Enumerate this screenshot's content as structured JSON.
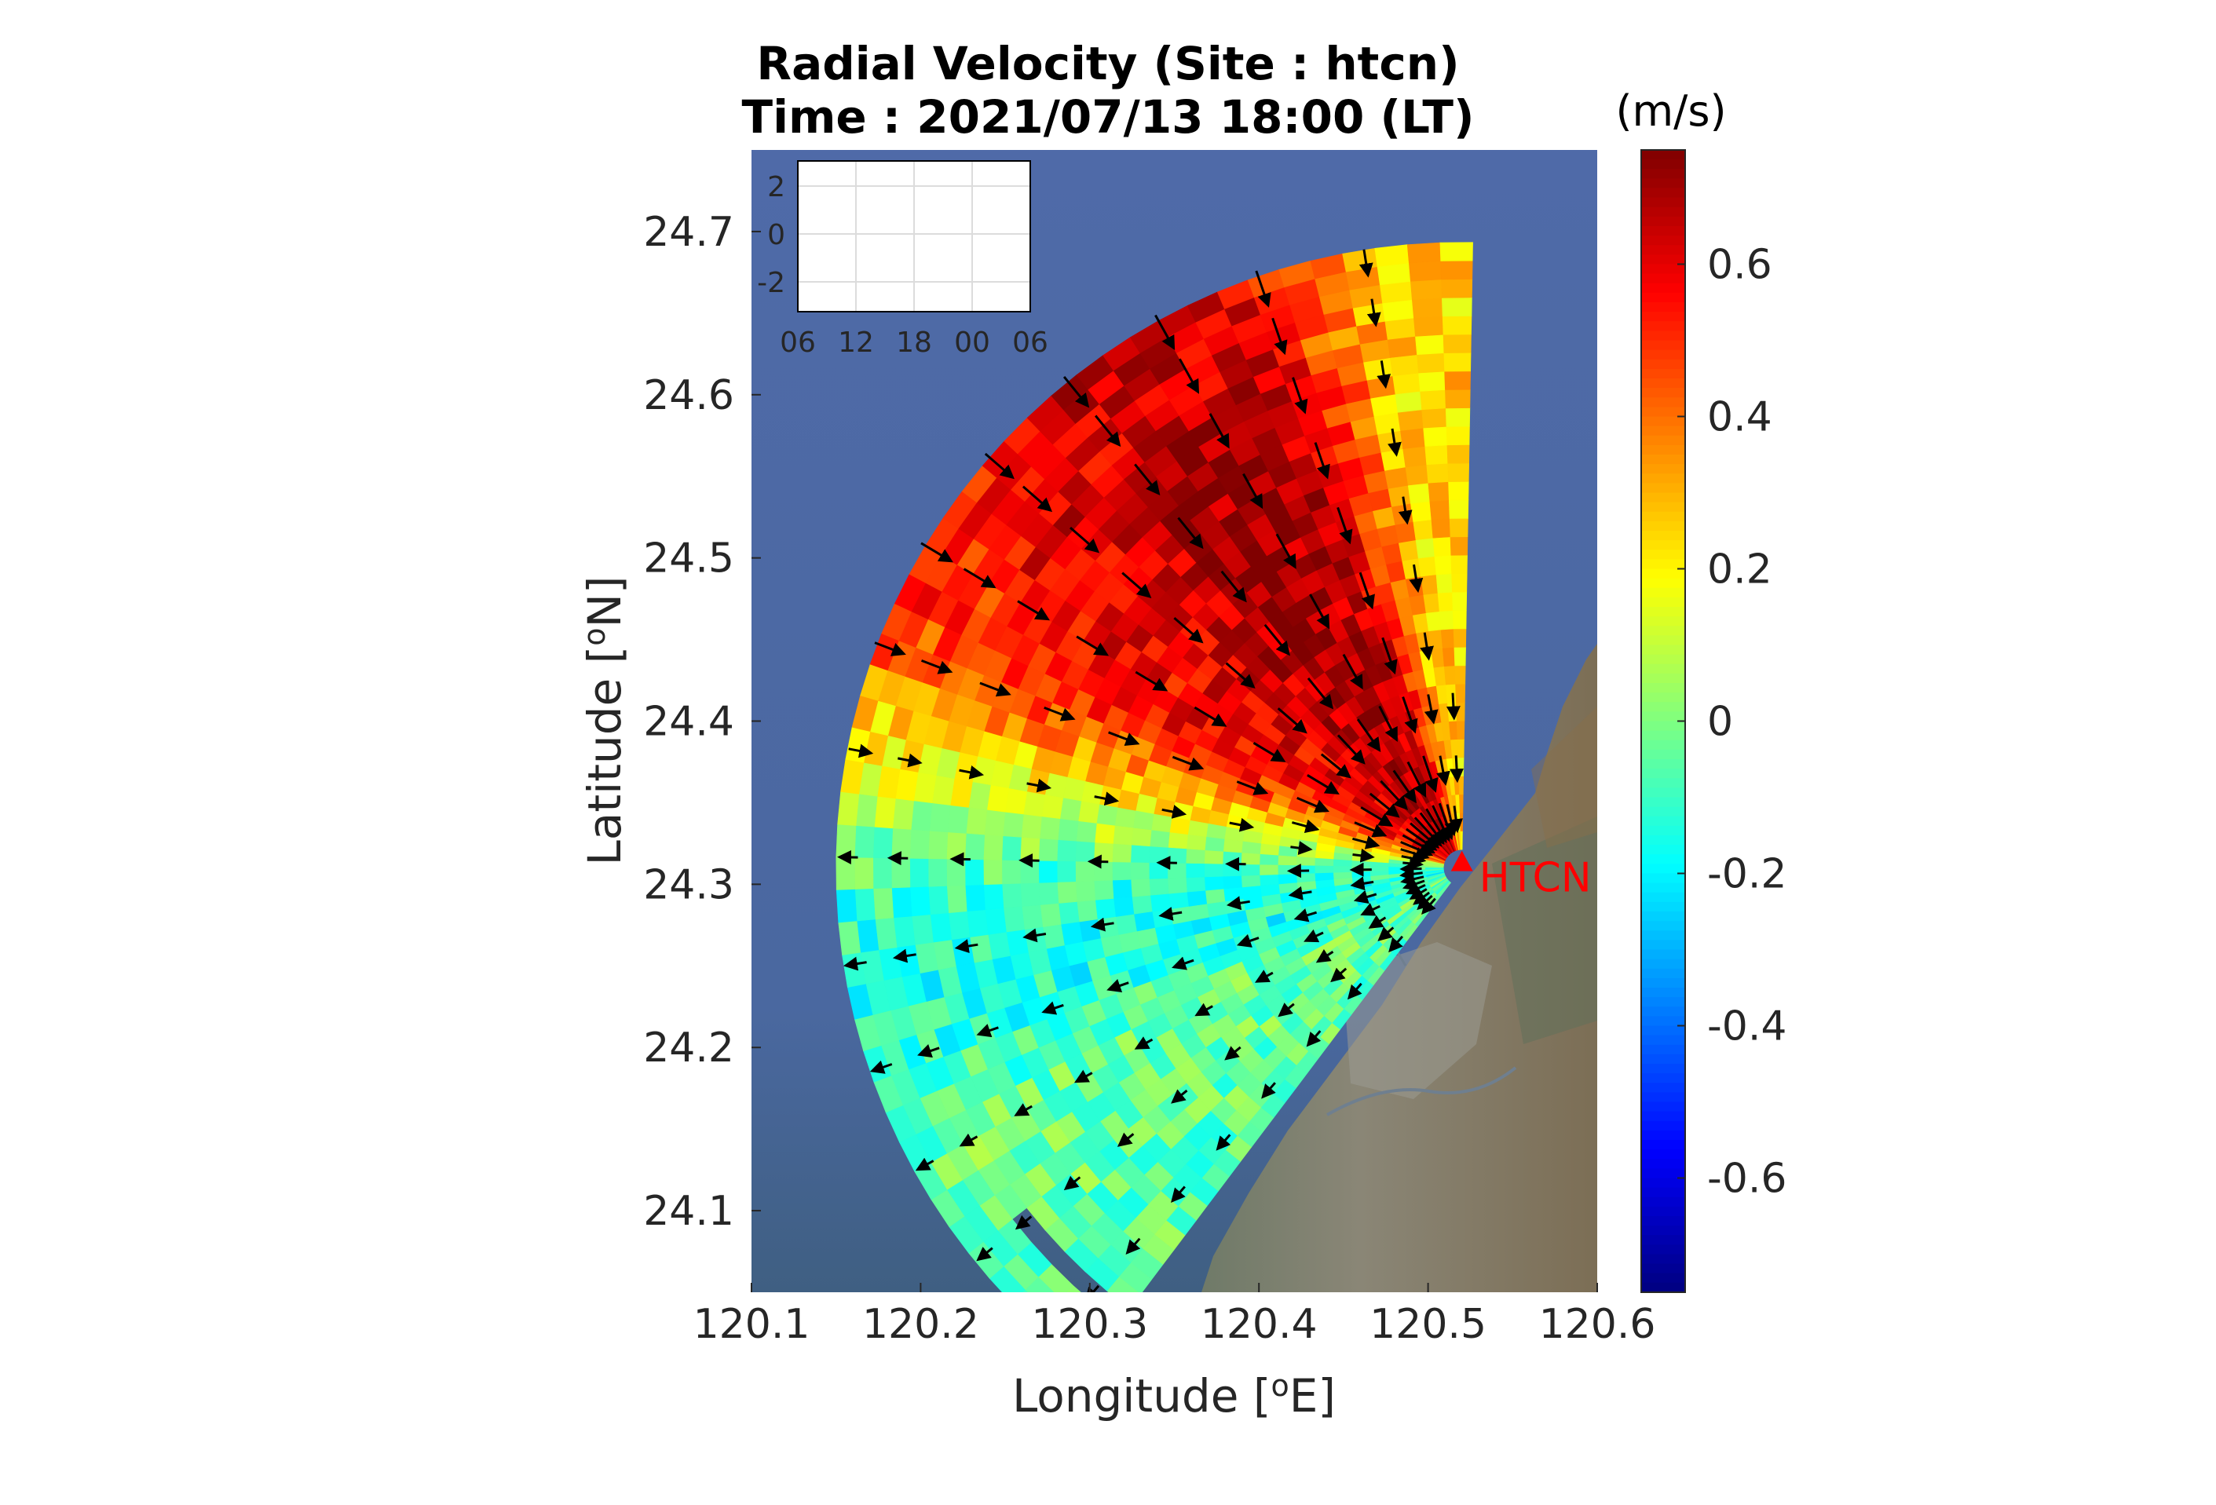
{
  "title_line1": "Radial Velocity (Site : htcn)",
  "title_line2": "Time : 2021/07/13 18:00 (LT)",
  "colorbar_unit": "(m/s)",
  "chart_data": {
    "type": "heatmap",
    "title": "Radial Velocity (Site : htcn)",
    "subtitle": "Time : 2021/07/13 18:00 (LT)",
    "xlabel": "Longitude [°E]",
    "ylabel": "Latitude [°N]",
    "xlim": [
      120.1,
      120.6
    ],
    "ylim": [
      24.05,
      24.75
    ],
    "x_ticks": [
      "120.1",
      "120.2",
      "120.3",
      "120.4",
      "120.5",
      "120.6"
    ],
    "y_ticks": [
      "24.1",
      "24.2",
      "24.3",
      "24.4",
      "24.5",
      "24.6",
      "24.7"
    ],
    "colorbar": {
      "label": "(m/s)",
      "range": [
        -0.75,
        0.75
      ],
      "ticks": [
        "-0.6",
        "-0.4",
        "-0.2",
        "0",
        "0.2",
        "0.4",
        "0.6"
      ],
      "colormap": "jet"
    },
    "site": {
      "name": "HTCN",
      "lon": 120.52,
      "lat": 24.31,
      "color": "#ff0000"
    },
    "radar_coverage": {
      "max_range_deg": 0.37,
      "bearing_min_deg": 217,
      "bearing_max_deg": 360
    },
    "velocity_field_by_bearing": [
      {
        "bearing": 222,
        "value": -0.05
      },
      {
        "bearing": 240,
        "value": -0.02
      },
      {
        "bearing": 255,
        "value": -0.15
      },
      {
        "bearing": 268,
        "value": -0.1
      },
      {
        "bearing": 280,
        "value": 0.15
      },
      {
        "bearing": 295,
        "value": 0.55
      },
      {
        "bearing": 310,
        "value": 0.6
      },
      {
        "bearing": 325,
        "value": 0.7
      },
      {
        "bearing": 340,
        "value": 0.65
      },
      {
        "bearing": 352,
        "value": 0.25
      }
    ],
    "inset": {
      "x_ticks": [
        "06",
        "12",
        "18",
        "00",
        "06"
      ],
      "y_ticks": [
        "2",
        "0",
        "-2"
      ]
    }
  }
}
